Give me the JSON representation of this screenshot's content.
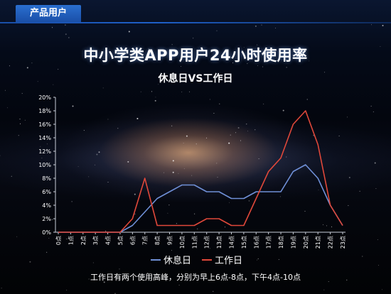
{
  "header": {
    "tab_label": "产品用户"
  },
  "footnote": "工作日有两个使用高峰，分别为早上6点-8点，下午4点-10点",
  "colors": {
    "series_rest": "#6f8fd6",
    "series_work": "#e0483a",
    "tab_accent": "#1e5fc8"
  },
  "chart_data": {
    "type": "line",
    "title": "中小学类APP用户24小时使用率",
    "subtitle": "休息日VS工作日",
    "xlabel": "",
    "ylabel": "",
    "categories": [
      "0点",
      "1点",
      "2点",
      "3点",
      "4点",
      "5点",
      "6点",
      "7点",
      "8点",
      "9点",
      "10点",
      "11点",
      "12点",
      "13点",
      "14点",
      "15点",
      "16点",
      "17点",
      "18点",
      "19点",
      "20点",
      "21点",
      "22点",
      "23点"
    ],
    "y_ticks": [
      "0%",
      "2%",
      "4%",
      "6%",
      "8%",
      "10%",
      "12%",
      "14%",
      "16%",
      "18%",
      "20%"
    ],
    "ylim": [
      0,
      20
    ],
    "grid": false,
    "legend": "bottom",
    "series": [
      {
        "name": "休息日",
        "color": "#6f8fd6",
        "values": [
          0,
          0,
          0,
          0,
          0,
          0,
          1,
          3,
          5,
          6,
          7,
          7,
          6,
          6,
          5,
          5,
          6,
          6,
          6,
          9,
          10,
          8,
          4,
          1
        ]
      },
      {
        "name": "工作日",
        "color": "#e0483a",
        "values": [
          0,
          0,
          0,
          0,
          0,
          0,
          2,
          8,
          1,
          1,
          1,
          1,
          2,
          2,
          1,
          1,
          5,
          9,
          11,
          16,
          18,
          13,
          4,
          1
        ]
      }
    ]
  }
}
